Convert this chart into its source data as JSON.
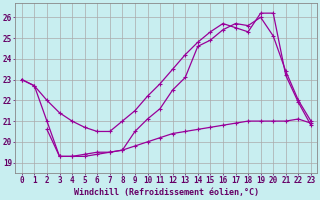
{
  "background_color": "#c8eef0",
  "line_color": "#990099",
  "grid_color": "#aaaaaa",
  "xlabel": "Windchill (Refroidissement éolien,°C)",
  "xlabel_color": "#660066",
  "tick_color": "#660066",
  "ylim": [
    18.5,
    26.7
  ],
  "xlim": [
    -0.5,
    23.5
  ],
  "yticks": [
    19,
    20,
    21,
    22,
    23,
    24,
    25,
    26
  ],
  "xticks": [
    0,
    1,
    2,
    3,
    4,
    5,
    6,
    7,
    8,
    9,
    10,
    11,
    12,
    13,
    14,
    15,
    16,
    17,
    18,
    19,
    20,
    21,
    22,
    23
  ],
  "series1_x": [
    0,
    1,
    2,
    3,
    4,
    5,
    6,
    7,
    8,
    9,
    10,
    11,
    12,
    13,
    14,
    15,
    16,
    17,
    18,
    19,
    20,
    21,
    22,
    23
  ],
  "series1_y": [
    23.0,
    22.7,
    22.0,
    21.4,
    21.0,
    20.7,
    20.5,
    20.5,
    21.0,
    21.5,
    22.2,
    22.8,
    23.5,
    24.2,
    24.8,
    25.3,
    25.7,
    25.5,
    25.3,
    26.2,
    26.2,
    23.2,
    21.9,
    20.8
  ],
  "series2_x": [
    0,
    1,
    2,
    3,
    4,
    5,
    6,
    7,
    8,
    9,
    10,
    11,
    12,
    13,
    14,
    15,
    16,
    17,
    18,
    19,
    20,
    21,
    22,
    23
  ],
  "series2_y": [
    23.0,
    22.7,
    21.0,
    19.3,
    19.3,
    19.4,
    19.5,
    19.5,
    19.6,
    20.5,
    21.1,
    21.6,
    22.5,
    23.1,
    24.6,
    24.9,
    25.4,
    25.7,
    25.6,
    26.0,
    25.1,
    23.4,
    22.0,
    21.0
  ],
  "series3_x": [
    2,
    3,
    4,
    5,
    6,
    7,
    8,
    9,
    10,
    11,
    12,
    13,
    14,
    15,
    16,
    17,
    18,
    19,
    20,
    21,
    22,
    23
  ],
  "series3_y": [
    20.6,
    19.3,
    19.3,
    19.3,
    19.4,
    19.5,
    19.6,
    19.8,
    20.0,
    20.2,
    20.4,
    20.5,
    20.6,
    20.7,
    20.8,
    20.9,
    21.0,
    21.0,
    21.0,
    21.0,
    21.1,
    20.9
  ]
}
